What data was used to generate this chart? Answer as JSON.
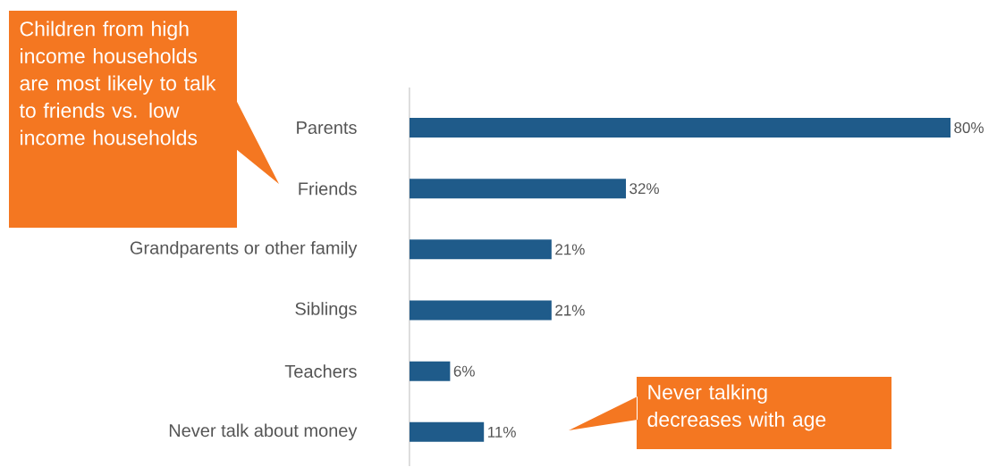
{
  "chart_data": {
    "type": "bar",
    "orientation": "horizontal",
    "categories": [
      "Parents",
      "Friends",
      "Grandparents or other family",
      "Siblings",
      "Teachers",
      "Never talk about money"
    ],
    "values": [
      80,
      32,
      21,
      21,
      6,
      11
    ],
    "value_labels": [
      "80%",
      "32%",
      "21%",
      "21%",
      "6%",
      "11%"
    ],
    "color": "#1f5b8a",
    "annotations": [
      "Children from high income households are most likely to talk to friends vs. low income households",
      "Never talking decreases with age"
    ]
  }
}
